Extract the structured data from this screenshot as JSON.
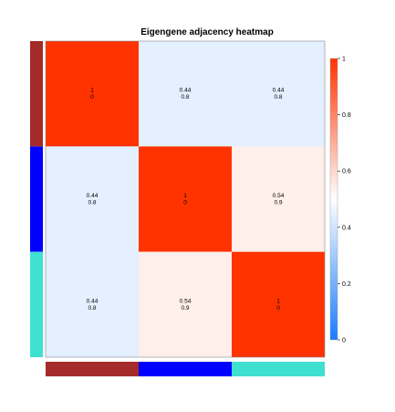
{
  "chart_data": {
    "type": "heatmap",
    "title": "Eigengene adjacency heatmap",
    "xlabel": "",
    "ylabel": "",
    "module_colors": [
      "#a52a2a",
      "#0000ff",
      "#40e0d0"
    ],
    "values": [
      [
        1,
        0.44,
        0.44
      ],
      [
        0.44,
        1,
        0.54
      ],
      [
        0.44,
        0.54,
        1
      ]
    ],
    "cell_labels": [
      [
        [
          "1",
          "0"
        ],
        [
          "0.44",
          "0.8"
        ],
        [
          "0.44",
          "0.8"
        ]
      ],
      [
        [
          "0.44",
          "0.8"
        ],
        [
          "1",
          "0"
        ],
        [
          "0.54",
          "0.9"
        ]
      ],
      [
        [
          "0.44",
          "0.8"
        ],
        [
          "0.54",
          "0.9"
        ],
        [
          "1",
          "0"
        ]
      ]
    ],
    "colorbar": {
      "range": [
        0,
        1
      ],
      "ticks": [
        "0",
        "0.2",
        "0.4",
        "0.6",
        "0.8",
        "1"
      ],
      "tick_values": [
        0,
        0.2,
        0.4,
        0.6,
        0.8,
        1
      ],
      "colors": {
        "low": "#1a7cff",
        "mid": "#ffffff",
        "high": "#ff3300"
      }
    },
    "grid": false,
    "legend": "right"
  }
}
